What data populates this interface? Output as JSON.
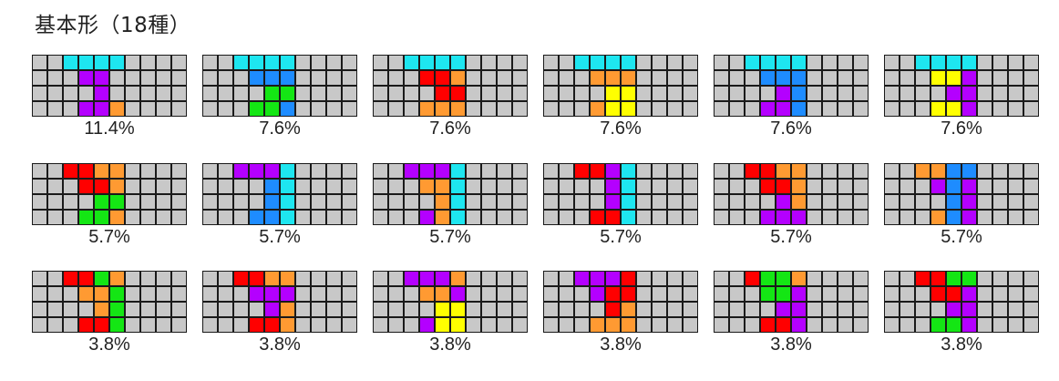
{
  "title": "基本形（18種）",
  "colors": {
    "empty": "#c8c8c8",
    "C": "#1ee6f0",
    "P": "#b400ff",
    "O": "#ff9a32",
    "B": "#1e8cff",
    "G": "#14e614",
    "R": "#ff0000",
    "Y": "#ffff00"
  },
  "patterns": [
    {
      "label": "11.4%",
      "rows": [
        "..CCCC....",
        "...PP.....",
        "....P.....",
        "...PPO...."
      ]
    },
    {
      "label": "7.6%",
      "rows": [
        "..CCCC....",
        "...BBB....",
        "....GG....",
        "...GGB...."
      ]
    },
    {
      "label": "7.6%",
      "rows": [
        "..CCCC....",
        "...RRO....",
        "....RR....",
        "...OOO...."
      ]
    },
    {
      "label": "7.6%",
      "rows": [
        "..CCCC....",
        "...OOO....",
        "....YY....",
        "...OYY...."
      ]
    },
    {
      "label": "7.6%",
      "rows": [
        "..CCCC....",
        "...BBB....",
        "....PB....",
        "...PPB...."
      ]
    },
    {
      "label": "7.6%",
      "rows": [
        "..CCCC....",
        "...YYP....",
        "....PP....",
        "...YYP...."
      ]
    },
    {
      "label": "5.7%",
      "rows": [
        "..RROO....",
        "...RRO....",
        "....GG....",
        "...GGO...."
      ]
    },
    {
      "label": "5.7%",
      "rows": [
        "..PPPC....",
        "....BC....",
        "....BC....",
        "...BBC...."
      ]
    },
    {
      "label": "5.7%",
      "rows": [
        "..PPPC....",
        "...OOC....",
        "....OC....",
        "...POC...."
      ]
    },
    {
      "label": "5.7%",
      "rows": [
        "..RRPC....",
        "....PC....",
        "....PC....",
        "...RRC...."
      ]
    },
    {
      "label": "5.7%",
      "rows": [
        "..RROO....",
        "...RRO....",
        "....PO....",
        "...PPP...."
      ]
    },
    {
      "label": "5.7%",
      "rows": [
        "..OOBB....",
        "...PBP....",
        "....BP....",
        "...OBP...."
      ]
    },
    {
      "label": "3.8%",
      "rows": [
        "..RRGO....",
        "...OOG....",
        "....OG....",
        "...RRG...."
      ]
    },
    {
      "label": "3.8%",
      "rows": [
        "..RROO....",
        "...PPP....",
        "....PO....",
        "...RRO...."
      ]
    },
    {
      "label": "3.8%",
      "rows": [
        "..PPPO....",
        "...OOP....",
        "....YY....",
        "...PYY...."
      ]
    },
    {
      "label": "3.8%",
      "rows": [
        "..PPPR....",
        "...PRR....",
        "....RO....",
        "...OOO...."
      ]
    },
    {
      "label": "3.8%",
      "rows": [
        "..RGGO....",
        "...GGP....",
        "....PP....",
        "...RRP...."
      ]
    },
    {
      "label": "3.8%",
      "rows": [
        "..RRGG....",
        "...RRP....",
        "....PP....",
        "...GGP...."
      ]
    }
  ]
}
